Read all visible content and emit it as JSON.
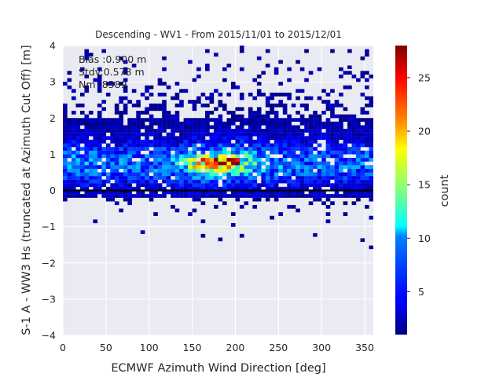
{
  "chart_data": {
    "type": "heatmap",
    "title": "Descending - WV1 - From 2015/11/01 to 2015/12/01",
    "xlabel": "ECMWF Azimuth Wind Direction [deg]",
    "ylabel": "S-1 A - WW3 Hs (truncated at Azimuth Cut Off) [m]",
    "xlim": [
      0,
      360
    ],
    "ylim": [
      -4,
      4
    ],
    "xticks": [
      "0",
      "50",
      "100",
      "150",
      "200",
      "250",
      "300",
      "350"
    ],
    "yticks": [
      "−4",
      "−3",
      "−2",
      "−1",
      "0",
      "1",
      "2",
      "3",
      "4"
    ],
    "grid": true,
    "bin_width_deg": 5,
    "bin_height_m": 0.1,
    "reference_line_y": 0,
    "stats": [
      "Bias :0.900 m",
      "Stdv:0.578 m",
      "Nm :8389"
    ],
    "colorbar": {
      "label": "count",
      "range": [
        1,
        28
      ],
      "ticks": [
        "5",
        "10",
        "15",
        "20",
        "25"
      ],
      "colormap": "jet"
    },
    "density_model": {
      "core_band_y": [
        -0.2,
        2.0
      ],
      "peak_count": 28,
      "peak_x_range": [
        150,
        210
      ],
      "peak_y": 0.75
    }
  }
}
